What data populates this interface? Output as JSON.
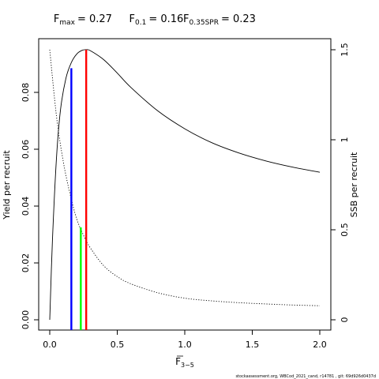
{
  "title": {
    "fmax": {
      "sym": "F",
      "sub": "max",
      "val": "= 0.27"
    },
    "f01": {
      "sym": "F",
      "sub": "0.1",
      "val": "= 0.16"
    },
    "fspr": {
      "sym": "F",
      "sub": "0.35SPR",
      "val": "= 0.23"
    }
  },
  "footer": "stockassessment.org, WBCod_2021_cand, r14781 , git: 69d926d0437d",
  "chart_data": {
    "type": "line",
    "xlabel": {
      "sym": "F",
      "sub": "3−5"
    },
    "ylabel_left": "Yield per recruit",
    "ylabel_right": "SSB per recruit",
    "xlim": [
      0,
      2
    ],
    "ylim_left": [
      0,
      0.095
    ],
    "ylim_right": [
      0,
      1.5
    ],
    "x_ticks": [
      "0.0",
      "0.5",
      "1.0",
      "1.5",
      "2.0"
    ],
    "y_left_ticks": [
      "0.00",
      "0.02",
      "0.04",
      "0.06",
      "0.08"
    ],
    "y_right_ticks": [
      "0",
      "0.5",
      "1",
      "1.5"
    ],
    "series": [
      {
        "axis": "left",
        "style": "solid",
        "color": "#000000",
        "x": [
          0,
          0.02,
          0.05,
          0.08,
          0.12,
          0.16,
          0.2,
          0.24,
          0.27,
          0.3,
          0.4,
          0.5,
          0.6,
          0.8,
          1.0,
          1.2,
          1.4,
          1.6,
          1.8,
          2.0
        ],
        "y": [
          0,
          0.028,
          0.057,
          0.074,
          0.085,
          0.0905,
          0.0935,
          0.0948,
          0.095,
          0.0947,
          0.0915,
          0.0868,
          0.0818,
          0.0735,
          0.0672,
          0.0623,
          0.0587,
          0.0559,
          0.0537,
          0.0519
        ]
      },
      {
        "axis": "right",
        "style": "dotted",
        "color": "#000000",
        "x": [
          0,
          0.05,
          0.1,
          0.15,
          0.2,
          0.25,
          0.3,
          0.4,
          0.5,
          0.6,
          0.8,
          1.0,
          1.2,
          1.4,
          1.6,
          1.8,
          2.0
        ],
        "y": [
          1.5,
          1.13,
          0.88,
          0.7,
          0.56,
          0.47,
          0.4,
          0.3,
          0.24,
          0.2,
          0.15,
          0.12,
          0.105,
          0.095,
          0.088,
          0.082,
          0.078
        ]
      }
    ],
    "reference_lines": [
      {
        "name": "F0.1",
        "x": 0.16,
        "y_top": 0.0885,
        "color": "#0000ff"
      },
      {
        "name": "F0.35SPR",
        "x": 0.23,
        "y_top": 0.0325,
        "color": "#00ff00"
      },
      {
        "name": "Fmax",
        "x": 0.27,
        "y_top": 0.095,
        "color": "#ff0000"
      }
    ]
  }
}
